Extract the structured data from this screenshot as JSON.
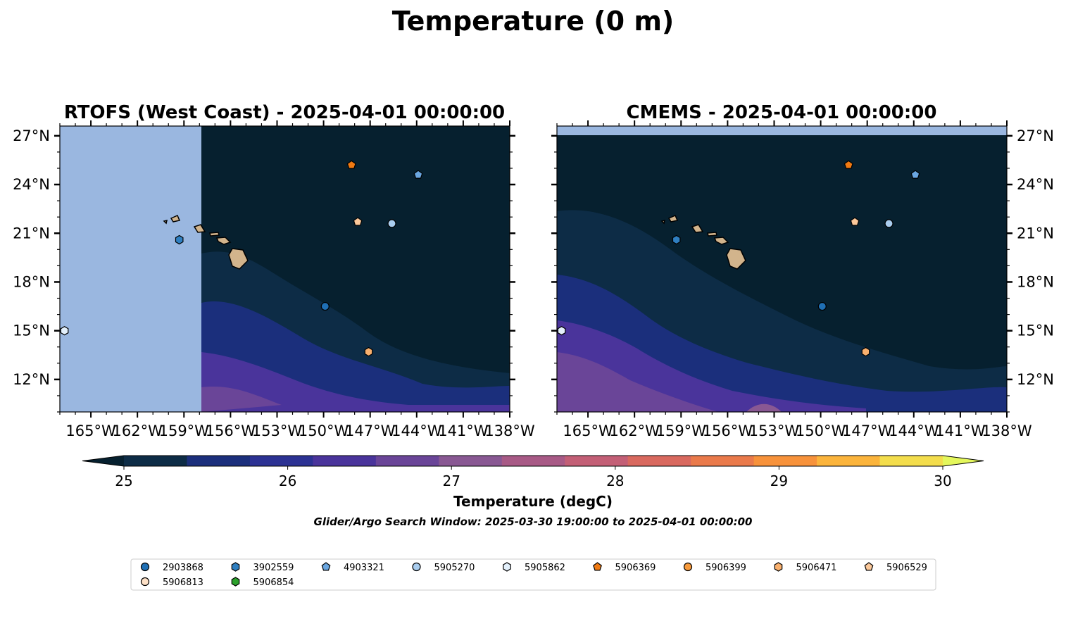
{
  "figure": {
    "title": "Temperature (0 m)",
    "subtitle": "Glider/Argo Search Window: 2025-03-30 19:00:00 to 2025-04-01 00:00:00"
  },
  "colors": {
    "land": "#d2b48c",
    "nodata": "#9ab7e0",
    "frame": "#000000"
  },
  "chart_data": [
    {
      "type": "map",
      "title": "RTOFS (West Coast) - 2025-04-01 00:00:00",
      "x_ticks": [
        "165°W",
        "162°W",
        "159°W",
        "156°W",
        "153°W",
        "150°W",
        "147°W",
        "144°W",
        "141°W",
        "138°W"
      ],
      "y_ticks": [
        "12°N",
        "15°N",
        "18°N",
        "21°N",
        "24°N",
        "27°N"
      ],
      "y_axis_side": "left",
      "lon_range": [
        -167,
        -138
      ],
      "lat_range": [
        10,
        27.6
      ],
      "model_coverage_lon_min": -157.9,
      "grid": false
    },
    {
      "type": "map",
      "title": "CMEMS - 2025-04-01 00:00:00",
      "x_ticks": [
        "165°W",
        "162°W",
        "159°W",
        "156°W",
        "153°W",
        "150°W",
        "147°W",
        "144°W",
        "141°W",
        "138°W"
      ],
      "y_ticks": [
        "12°N",
        "15°N",
        "18°N",
        "21°N",
        "24°N",
        "27°N"
      ],
      "y_axis_side": "right",
      "lon_range": [
        -167,
        -138
      ],
      "lat_range": [
        10,
        27.6
      ],
      "model_coverage_lat_max": 27.05,
      "grid": false
    }
  ],
  "colorbar": {
    "label": "Temperature (degC)",
    "ticks": [
      "25",
      "26",
      "27",
      "28",
      "29",
      "30"
    ],
    "range": [
      25,
      30
    ],
    "extend": "both",
    "bins": [
      "#06202f",
      "#0d2c46",
      "#1b2f7c",
      "#2c3293",
      "#4a349b",
      "#6a4598",
      "#895893",
      "#a85a86",
      "#c35f76",
      "#d9695f",
      "#ea7a4b",
      "#f7923b",
      "#fbb43c",
      "#f3dd4c",
      "#e4f75c"
    ]
  },
  "legend": {
    "items": [
      {
        "label": "2903868",
        "marker": "circle",
        "color": "#1f6fb4",
        "lon": -149.9,
        "lat": 16.5
      },
      {
        "label": "3902559",
        "marker": "hexagon",
        "color": "#2f7fc1",
        "lon": -159.3,
        "lat": 20.6
      },
      {
        "label": "4903321",
        "marker": "pentagon",
        "color": "#6aa6e0",
        "lon": -143.9,
        "lat": 24.6
      },
      {
        "label": "5905270",
        "marker": "circle",
        "color": "#a9cdef",
        "lon": -145.6,
        "lat": 21.6
      },
      {
        "label": "5905862",
        "marker": "hexagon",
        "color": "#e3f0fb",
        "lon": -166.7,
        "lat": 15.0
      },
      {
        "label": "5906369",
        "marker": "pentagon",
        "color": "#f07a12",
        "lon": -148.2,
        "lat": 25.2
      },
      {
        "label": "5906399",
        "marker": "circle",
        "color": "#f79a3c",
        "lon": null,
        "lat": null
      },
      {
        "label": "5906471",
        "marker": "hexagon",
        "color": "#f9b06e",
        "lon": -147.1,
        "lat": 13.7
      },
      {
        "label": "5906529",
        "marker": "pentagon",
        "color": "#fbc89a",
        "lon": -147.8,
        "lat": 21.7
      },
      {
        "label": "5906813",
        "marker": "circle",
        "color": "#fde0c6",
        "lon": null,
        "lat": null
      },
      {
        "label": "5906854",
        "marker": "hexagon",
        "color": "#2ca02c",
        "lon": null,
        "lat": null
      }
    ]
  }
}
